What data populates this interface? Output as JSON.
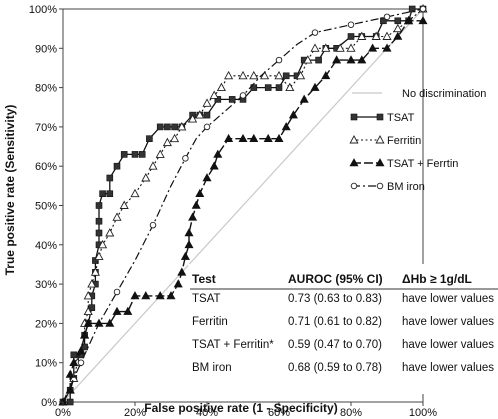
{
  "chart_data": {
    "type": "line",
    "xlabel": "False positive rate (1 - Specificity)",
    "ylabel": "True positive rate (Sensitivity)",
    "xlim": [
      0,
      100
    ],
    "ylim": [
      0,
      100
    ],
    "x_ticks": [
      "0%",
      "20%",
      "40%",
      "60%",
      "80%",
      "100%"
    ],
    "y_ticks": [
      "0%",
      "10%",
      "20%",
      "30%",
      "40%",
      "50%",
      "60%",
      "70%",
      "80%",
      "90%",
      "100%"
    ],
    "grid": false,
    "legend_position": "right",
    "reference_line": {
      "name": "No discrimination",
      "points": [
        [
          0,
          0
        ],
        [
          100,
          100
        ]
      ]
    },
    "series": [
      {
        "name": "TSAT",
        "marker": "square",
        "points": [
          [
            0,
            0
          ],
          [
            2,
            0
          ],
          [
            2,
            3
          ],
          [
            3,
            6
          ],
          [
            3,
            12
          ],
          [
            5,
            12
          ],
          [
            6,
            14
          ],
          [
            6,
            17
          ],
          [
            7,
            20
          ],
          [
            8,
            24
          ],
          [
            8,
            27
          ],
          [
            9,
            30
          ],
          [
            9,
            33
          ],
          [
            9,
            36
          ],
          [
            10,
            40
          ],
          [
            10,
            43
          ],
          [
            10,
            46
          ],
          [
            10,
            50
          ],
          [
            11,
            53
          ],
          [
            13,
            53
          ],
          [
            13,
            57
          ],
          [
            15,
            60
          ],
          [
            17,
            63
          ],
          [
            20,
            63
          ],
          [
            22,
            63
          ],
          [
            24,
            67
          ],
          [
            27,
            70
          ],
          [
            29,
            70
          ],
          [
            31,
            70
          ],
          [
            33,
            70
          ],
          [
            36,
            73
          ],
          [
            38,
            73
          ],
          [
            40,
            73
          ],
          [
            43,
            77
          ],
          [
            47,
            77
          ],
          [
            50,
            77
          ],
          [
            53,
            80
          ],
          [
            57,
            80
          ],
          [
            60,
            80
          ],
          [
            62,
            83
          ],
          [
            65,
            83
          ],
          [
            67,
            87
          ],
          [
            71,
            87
          ],
          [
            73,
            90
          ],
          [
            76,
            90
          ],
          [
            80,
            93
          ],
          [
            83,
            93
          ],
          [
            87,
            93
          ],
          [
            89,
            97
          ],
          [
            93,
            97
          ],
          [
            96,
            97
          ],
          [
            97,
            100
          ],
          [
            100,
            100
          ]
        ]
      },
      {
        "name": "Ferritin",
        "marker": "open-triangle",
        "points": [
          [
            0,
            0
          ],
          [
            2,
            3
          ],
          [
            3,
            6
          ],
          [
            4,
            10
          ],
          [
            5,
            13
          ],
          [
            6,
            17
          ],
          [
            6,
            20
          ],
          [
            7,
            23
          ],
          [
            7,
            27
          ],
          [
            8,
            30
          ],
          [
            9,
            33
          ],
          [
            10,
            37
          ],
          [
            11,
            40
          ],
          [
            13,
            43
          ],
          [
            15,
            47
          ],
          [
            17,
            50
          ],
          [
            20,
            53
          ],
          [
            23,
            57
          ],
          [
            25,
            60
          ],
          [
            27,
            63
          ],
          [
            29,
            66
          ],
          [
            31,
            67
          ],
          [
            33,
            70
          ],
          [
            36,
            72
          ],
          [
            38,
            73
          ],
          [
            40,
            76
          ],
          [
            42,
            78
          ],
          [
            44,
            80
          ],
          [
            46,
            83
          ],
          [
            50,
            83
          ],
          [
            53,
            83
          ],
          [
            56,
            83
          ],
          [
            60,
            83
          ],
          [
            63,
            80
          ],
          [
            66,
            83
          ],
          [
            68,
            87
          ],
          [
            70,
            90
          ],
          [
            73,
            90
          ],
          [
            77,
            90
          ],
          [
            80,
            90
          ],
          [
            83,
            93
          ],
          [
            87,
            93
          ],
          [
            90,
            93
          ],
          [
            93,
            95
          ],
          [
            96,
            97
          ],
          [
            100,
            100
          ]
        ]
      },
      {
        "name": "TSAT + Ferrtin",
        "marker": "filled-triangle",
        "points": [
          [
            0,
            0
          ],
          [
            2,
            3
          ],
          [
            2,
            7
          ],
          [
            3,
            10
          ],
          [
            5,
            13
          ],
          [
            6,
            17
          ],
          [
            7,
            20
          ],
          [
            10,
            20
          ],
          [
            13,
            20
          ],
          [
            15,
            23
          ],
          [
            18,
            23
          ],
          [
            20,
            27
          ],
          [
            23,
            27
          ],
          [
            27,
            27
          ],
          [
            30,
            27
          ],
          [
            32,
            30
          ],
          [
            33,
            33
          ],
          [
            34,
            37
          ],
          [
            35,
            40
          ],
          [
            35,
            43
          ],
          [
            36,
            47
          ],
          [
            37,
            50
          ],
          [
            38,
            53
          ],
          [
            40,
            57
          ],
          [
            42,
            60
          ],
          [
            43,
            63
          ],
          [
            46,
            67
          ],
          [
            50,
            67
          ],
          [
            53,
            67
          ],
          [
            57,
            67
          ],
          [
            60,
            67
          ],
          [
            62,
            70
          ],
          [
            64,
            73
          ],
          [
            67,
            77
          ],
          [
            70,
            80
          ],
          [
            73,
            83
          ],
          [
            76,
            87
          ],
          [
            80,
            87
          ],
          [
            83,
            87
          ],
          [
            86,
            90
          ],
          [
            90,
            90
          ],
          [
            93,
            93
          ],
          [
            96,
            97
          ],
          [
            100,
            97
          ]
        ]
      },
      {
        "name": "BM iron",
        "marker": "open-circle",
        "points": [
          [
            0,
            0
          ],
          [
            5,
            10
          ],
          [
            10,
            20
          ],
          [
            15,
            28
          ],
          [
            20,
            36
          ],
          [
            25,
            45
          ],
          [
            30,
            55
          ],
          [
            34,
            62
          ],
          [
            37,
            67
          ],
          [
            40,
            70
          ],
          [
            45,
            74
          ],
          [
            50,
            78
          ],
          [
            55,
            83
          ],
          [
            60,
            87
          ],
          [
            65,
            91
          ],
          [
            70,
            94
          ],
          [
            75,
            95
          ],
          [
            80,
            96
          ],
          [
            85,
            97
          ],
          [
            90,
            98
          ],
          [
            95,
            99
          ],
          [
            100,
            100
          ]
        ]
      }
    ],
    "table": {
      "headers": [
        "Test",
        "AUROC (95% CI)",
        "ΔHb ≥ 1g/dL"
      ],
      "rows": [
        [
          "TSAT",
          "0.73 (0.63 to 0.83)",
          "have lower values"
        ],
        [
          "Ferritin",
          "0.71 (0.61 to 0.82)",
          "have lower values"
        ],
        [
          "TSAT + Ferritin*",
          "0.59 (0.47 to 0.70)",
          "have lower values"
        ],
        [
          "BM iron",
          "0.68 (0.59 to 0.78)",
          "have lower values"
        ]
      ]
    },
    "colors": {
      "line": "#111111",
      "reference": "#c8c8c8"
    }
  }
}
